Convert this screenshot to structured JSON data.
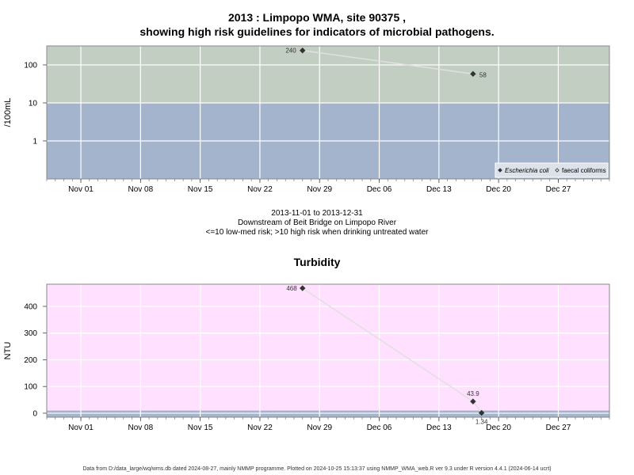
{
  "page": {
    "title_line1": "2013 : Limpopo WMA, site 90375 ,",
    "title_line2": "showing high risk guidelines for indicators of microbial pathogens.",
    "range_text": "2013-11-01 to 2013-12-31",
    "location_text": "Downstream of Beit Bridge on Limpopo River",
    "risk_text": "<=10 low-med risk; >10 high risk when drinking untreated water",
    "footer": "Data from D:/data_large/wq/wms.db dated 2024-08-27, mainly NMMP programme. Plotted on 2024-10-25 15:13:37 using NMMP_WMA_web.R ver 9.3 under R version 4.4.1 (2024-06-14 ucrt)"
  },
  "chart_data": [
    {
      "type": "scatter",
      "title": "",
      "ylabel": "/100mL",
      "xlabel": "",
      "y_scale": "log",
      "xlim": [
        "2013-10-28",
        "2014-01-02"
      ],
      "ylim": [
        0.1,
        316
      ],
      "x_ticks": [
        "2013-11-01",
        "2013-11-08",
        "2013-11-15",
        "2013-11-22",
        "2013-11-29",
        "2013-12-06",
        "2013-12-13",
        "2013-12-20",
        "2013-12-27"
      ],
      "x_tick_labels": [
        "Nov 01",
        "Nov 08",
        "Nov 15",
        "Nov 22",
        "Nov 29",
        "Dec 06",
        "Dec 13",
        "Dec 20",
        "Dec 27"
      ],
      "y_ticks": [
        1,
        10,
        100
      ],
      "y_tick_labels": [
        "1",
        "10",
        "100"
      ],
      "bands": [
        {
          "from": 0.1,
          "to": 10,
          "color": "#a3b4cc"
        },
        {
          "from": 10,
          "to": 316,
          "color": "#c3cec3"
        }
      ],
      "series": [
        {
          "name": "Escherichia coli",
          "marker": "filled-diamond",
          "color": "#333333",
          "points": [
            {
              "x": "2013-11-27",
              "y": 240,
              "label": "240"
            },
            {
              "x": "2013-12-17",
              "y": 58,
              "label": "58"
            }
          ]
        }
      ],
      "legend": {
        "position": "bottom-right",
        "entries": [
          {
            "label": "Escherichia coli",
            "marker": "filled-diamond",
            "italic": true
          },
          {
            "label": "faecal coliforms",
            "marker": "open-diamond",
            "italic": false
          }
        ]
      },
      "grid": true
    },
    {
      "type": "scatter",
      "title": "Turbidity",
      "ylabel": "NTU",
      "xlabel": "",
      "y_scale": "linear",
      "xlim": [
        "2013-10-28",
        "2014-01-02"
      ],
      "ylim": [
        -15,
        483
      ],
      "x_ticks": [
        "2013-11-01",
        "2013-11-08",
        "2013-11-15",
        "2013-11-22",
        "2013-11-29",
        "2013-12-06",
        "2013-12-13",
        "2013-12-20",
        "2013-12-27"
      ],
      "x_tick_labels": [
        "Nov 01",
        "Nov 08",
        "Nov 15",
        "Nov 22",
        "Nov 29",
        "Dec 06",
        "Dec 13",
        "Dec 20",
        "Dec 27"
      ],
      "y_ticks": [
        0,
        100,
        200,
        300,
        400
      ],
      "y_tick_labels": [
        "0",
        "100",
        "200",
        "300",
        "400"
      ],
      "bands": [
        {
          "from": -15,
          "to": 10,
          "color": "#a3b4cc"
        },
        {
          "from": 10,
          "to": 483,
          "color": "#ffe0ff"
        }
      ],
      "series": [
        {
          "name": "",
          "marker": "filled-diamond",
          "color": "#333333",
          "points": [
            {
              "x": "2013-11-27",
              "y": 468,
              "label": "468"
            },
            {
              "x": "2013-12-17",
              "y": 43.9,
              "label": "43.9"
            },
            {
              "x": "2013-12-18",
              "y": 1.34,
              "label": "1.34"
            }
          ]
        }
      ],
      "grid": true
    }
  ]
}
